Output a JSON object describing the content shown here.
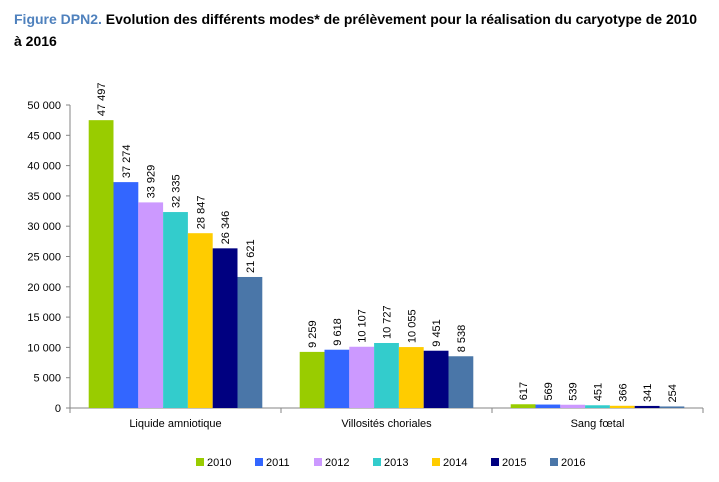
{
  "header": {
    "prefix": "Figure DPN2.",
    "title": "Evolution des différents modes* de prélèvement pour la réalisation du caryotype de 2010 à 2016"
  },
  "chart_data": {
    "type": "bar",
    "categories": [
      "Liquide amniotique",
      "Villosités choriales",
      "Sang fœtal"
    ],
    "series": [
      {
        "name": "2010",
        "color": "#99cc00",
        "values": [
          47497,
          9259,
          617
        ],
        "labels": [
          "47 497",
          "9 259",
          "617"
        ]
      },
      {
        "name": "2011",
        "color": "#3366ff",
        "values": [
          37274,
          9618,
          569
        ],
        "labels": [
          "37 274",
          "9 618",
          "569"
        ]
      },
      {
        "name": "2012",
        "color": "#cc99ff",
        "values": [
          33929,
          10107,
          539
        ],
        "labels": [
          "33 929",
          "10 107",
          "539"
        ]
      },
      {
        "name": "2013",
        "color": "#33cccc",
        "values": [
          32335,
          10727,
          451
        ],
        "labels": [
          "32 335",
          "10 727",
          "451"
        ]
      },
      {
        "name": "2014",
        "color": "#ffcc00",
        "values": [
          28847,
          10055,
          366
        ],
        "labels": [
          "28 847",
          "10 055",
          "366"
        ]
      },
      {
        "name": "2015",
        "color": "#000080",
        "values": [
          26346,
          9451,
          341
        ],
        "labels": [
          "26 346",
          "9 451",
          "341"
        ]
      },
      {
        "name": "2016",
        "color": "#4a76a8",
        "values": [
          21621,
          8538,
          254
        ],
        "labels": [
          "21 621",
          "8 538",
          "254"
        ]
      }
    ],
    "ylim": [
      0,
      50000
    ],
    "yticks": [
      0,
      5000,
      10000,
      15000,
      20000,
      25000,
      30000,
      35000,
      40000,
      45000,
      50000
    ],
    "ytick_labels": [
      "0",
      "5 000",
      "10 000",
      "15 000",
      "20 000",
      "25 000",
      "30 000",
      "35 000",
      "40 000",
      "45 000",
      "50 000"
    ],
    "legend_position": "bottom",
    "grid": false
  }
}
